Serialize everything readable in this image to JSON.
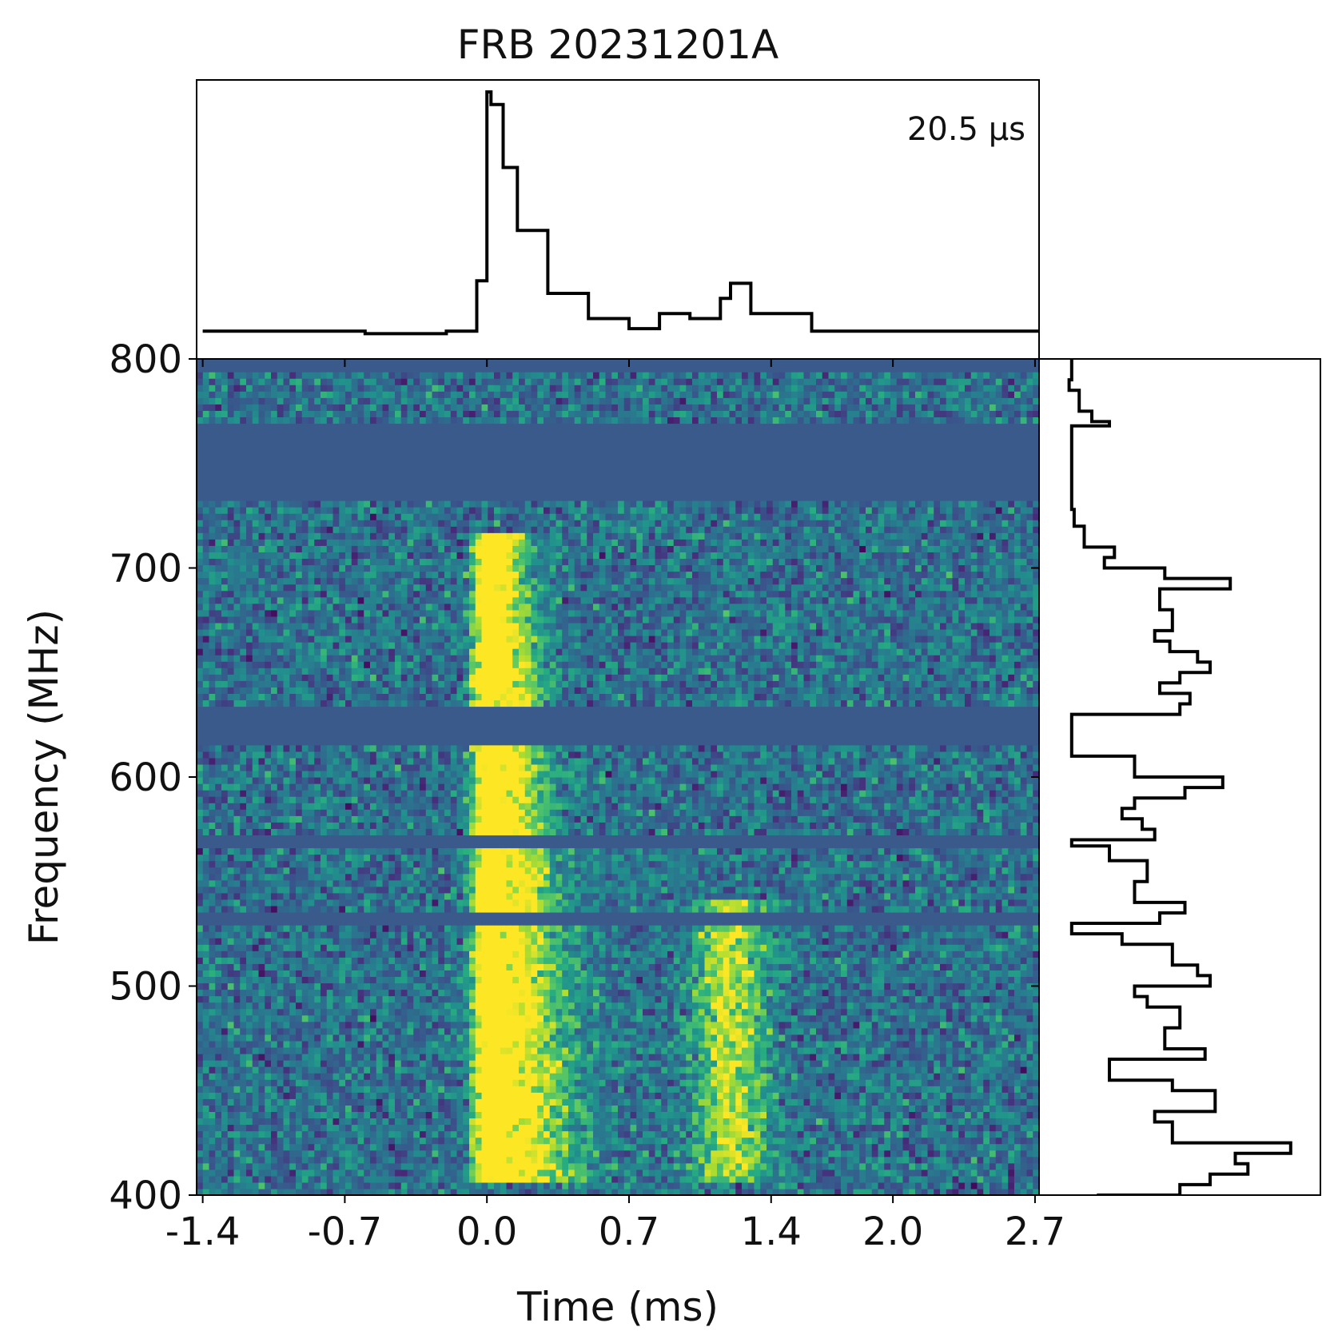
{
  "chart_data": {
    "type": "heatmap",
    "title": "FRB 20231201A",
    "xlabel": "Time (ms)",
    "ylabel": "Frequency (MHz)",
    "annotation": "20.5 μs",
    "xlim": [
      -1.43,
      2.72
    ],
    "ylim": [
      400,
      800
    ],
    "xticks": [
      "-1.4",
      "-0.7",
      "0.0",
      "0.7",
      "1.4",
      "2.0",
      "2.7"
    ],
    "xtick_values": [
      -1.4,
      -0.7,
      0.0,
      0.7,
      1.4,
      2.0,
      2.7
    ],
    "yticks": [
      "400",
      "500",
      "600",
      "700",
      "800"
    ],
    "ytick_values": [
      400,
      500,
      600,
      700,
      800
    ],
    "colormap": "viridis",
    "masked_bands_mhz": [
      [
        731,
        768
      ],
      [
        616,
        634
      ],
      [
        567,
        571
      ],
      [
        530,
        534
      ]
    ],
    "masked_color": "#3b5a8c",
    "burst_components": [
      {
        "time_ms": 0.0,
        "freq_range_mhz": [
          405,
          718
        ]
      },
      {
        "time_ms": 1.2,
        "freq_range_mhz": [
          405,
          540
        ]
      }
    ],
    "time_profile": {
      "x": [
        -1.4,
        -0.6,
        -0.2,
        -0.05,
        0.0,
        0.02,
        0.08,
        0.15,
        0.3,
        0.5,
        0.7,
        0.85,
        1.0,
        1.15,
        1.2,
        1.3,
        1.6,
        2.0,
        2.7
      ],
      "y": [
        0.05,
        0.04,
        0.05,
        0.25,
        1.0,
        0.95,
        0.7,
        0.45,
        0.2,
        0.1,
        0.06,
        0.12,
        0.1,
        0.18,
        0.24,
        0.12,
        0.05,
        0.05,
        0.05
      ]
    },
    "spectrum": {
      "freq_mhz": [
        800,
        790,
        785,
        775,
        770,
        768,
        731,
        728,
        720,
        710,
        705,
        700,
        695,
        690,
        680,
        670,
        665,
        660,
        655,
        650,
        645,
        640,
        635,
        630,
        616,
        610,
        600,
        595,
        590,
        585,
        580,
        575,
        570,
        567,
        560,
        550,
        540,
        535,
        530,
        525,
        520,
        510,
        505,
        500,
        495,
        490,
        480,
        470,
        465,
        455,
        450,
        440,
        435,
        425,
        420,
        415,
        410,
        405,
        400
      ],
      "value": [
        0.05,
        0.04,
        0.08,
        0.13,
        0.2,
        0.05,
        0.05,
        0.06,
        0.1,
        0.22,
        0.18,
        0.42,
        0.68,
        0.4,
        0.45,
        0.38,
        0.44,
        0.55,
        0.6,
        0.48,
        0.4,
        0.52,
        0.48,
        0.05,
        0.05,
        0.3,
        0.65,
        0.5,
        0.3,
        0.25,
        0.33,
        0.38,
        0.05,
        0.2,
        0.35,
        0.3,
        0.5,
        0.4,
        0.05,
        0.25,
        0.45,
        0.55,
        0.6,
        0.3,
        0.35,
        0.48,
        0.42,
        0.58,
        0.2,
        0.45,
        0.62,
        0.38,
        0.45,
        0.92,
        0.7,
        0.75,
        0.6,
        0.48,
        0.15
      ]
    }
  }
}
